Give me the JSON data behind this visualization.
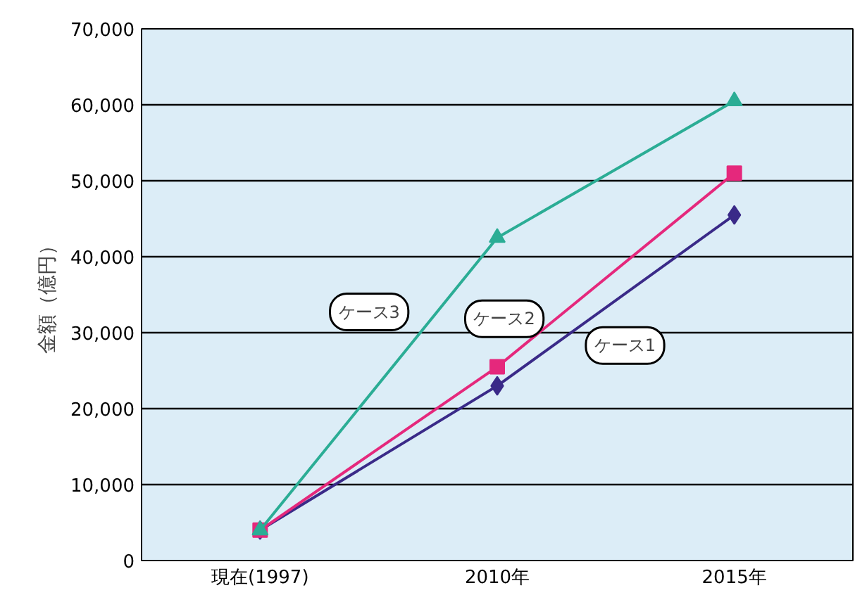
{
  "chart_data": {
    "type": "line",
    "ylabel": "金額（億円）",
    "categories": [
      "現在(1997)",
      "2010年",
      "2015年"
    ],
    "series": [
      {
        "name": "ケース1",
        "color": "#3a2a88",
        "values": [
          4000,
          23000,
          45500
        ],
        "marker": "diamond"
      },
      {
        "name": "ケース2",
        "color": "#e5287c",
        "values": [
          4000,
          25500,
          51000
        ],
        "marker": "square"
      },
      {
        "name": "ケース3",
        "color": "#2bad95",
        "values": [
          4000,
          42500,
          60500
        ],
        "marker": "triangle"
      }
    ],
    "ylim": [
      0,
      70000
    ],
    "yticks": [
      0,
      {
        "value": 10000,
        "label": "10,000"
      },
      {
        "value": 20000,
        "label": "20,000"
      },
      {
        "value": 30000,
        "label": "30,000"
      },
      {
        "value": 40000,
        "label": "40,000"
      },
      {
        "value": 50000,
        "label": "50,000"
      },
      {
        "value": 60000,
        "label": "60,000"
      },
      {
        "value": 70000,
        "label": "70,000"
      }
    ],
    "grid": "y",
    "line_style": "solid"
  }
}
